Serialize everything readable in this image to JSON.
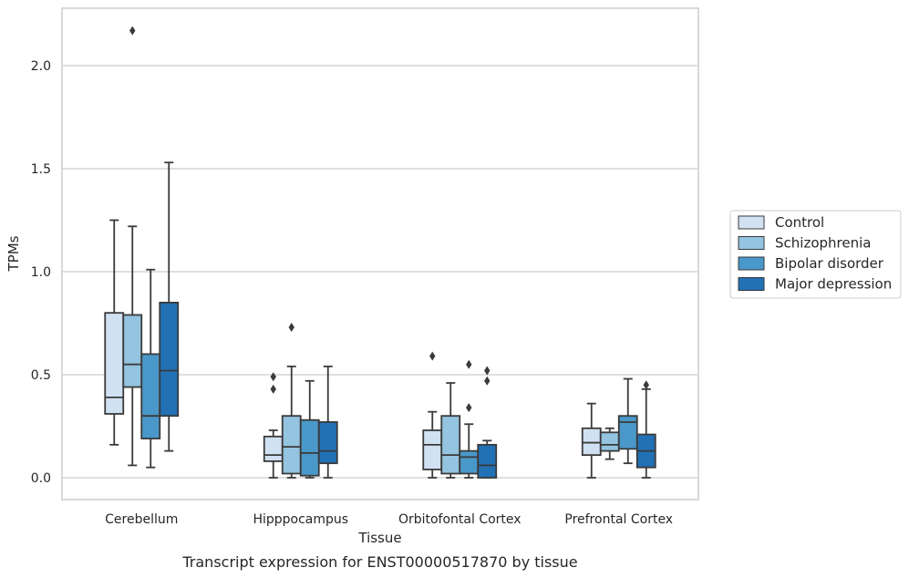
{
  "chart_data": {
    "type": "box",
    "title": "",
    "caption": "Transcript expression for ENST00000517870 by tissue",
    "xlabel": "Tissue",
    "ylabel": "TPMs",
    "ylim": [
      -0.1,
      2.3
    ],
    "yticks": [
      0.0,
      0.5,
      1.0,
      1.5,
      2.0
    ],
    "ytick_labels": [
      "0.0",
      "0.5",
      "1.0",
      "1.5",
      "2.0"
    ],
    "grid": "horizontal",
    "legend_position": "right",
    "categories": [
      "Cerebellum",
      "Hipppocampus",
      "Orbitofontal Cortex",
      "Prefrontal Cortex"
    ],
    "series": [
      {
        "name": "Control",
        "color": "#d0e1f2",
        "boxes": [
          {
            "whisker_low": 0.16,
            "q1": 0.31,
            "median": 0.39,
            "q3": 0.8,
            "whisker_high": 1.25,
            "outliers": []
          },
          {
            "whisker_low": 0.0,
            "q1": 0.08,
            "median": 0.11,
            "q3": 0.2,
            "whisker_high": 0.23,
            "outliers": [
              0.43,
              0.49
            ]
          },
          {
            "whisker_low": 0.0,
            "q1": 0.04,
            "median": 0.16,
            "q3": 0.23,
            "whisker_high": 0.32,
            "outliers": [
              0.59
            ]
          },
          {
            "whisker_low": 0.0,
            "q1": 0.11,
            "median": 0.17,
            "q3": 0.24,
            "whisker_high": 0.36,
            "outliers": []
          }
        ]
      },
      {
        "name": "Schizophrenia",
        "color": "#94c4df",
        "boxes": [
          {
            "whisker_low": 0.06,
            "q1": 0.44,
            "median": 0.55,
            "q3": 0.79,
            "whisker_high": 1.22,
            "outliers": [
              2.17
            ]
          },
          {
            "whisker_low": 0.0,
            "q1": 0.02,
            "median": 0.15,
            "q3": 0.3,
            "whisker_high": 0.54,
            "outliers": [
              0.73
            ]
          },
          {
            "whisker_low": 0.0,
            "q1": 0.02,
            "median": 0.11,
            "q3": 0.3,
            "whisker_high": 0.46,
            "outliers": []
          },
          {
            "whisker_low": 0.09,
            "q1": 0.13,
            "median": 0.16,
            "q3": 0.22,
            "whisker_high": 0.24,
            "outliers": []
          }
        ]
      },
      {
        "name": "Bipolar disorder",
        "color": "#4a98c9",
        "boxes": [
          {
            "whisker_low": 0.05,
            "q1": 0.19,
            "median": 0.3,
            "q3": 0.6,
            "whisker_high": 1.01,
            "outliers": []
          },
          {
            "whisker_low": 0.0,
            "q1": 0.01,
            "median": 0.12,
            "q3": 0.28,
            "whisker_high": 0.47,
            "outliers": []
          },
          {
            "whisker_low": 0.0,
            "q1": 0.02,
            "median": 0.1,
            "q3": 0.13,
            "whisker_high": 0.26,
            "outliers": [
              0.34,
              0.55
            ]
          },
          {
            "whisker_low": 0.07,
            "q1": 0.14,
            "median": 0.27,
            "q3": 0.3,
            "whisker_high": 0.48,
            "outliers": []
          }
        ]
      },
      {
        "name": "Major depression",
        "color": "#2271b5",
        "boxes": [
          {
            "whisker_low": 0.13,
            "q1": 0.3,
            "median": 0.52,
            "q3": 0.85,
            "whisker_high": 1.53,
            "outliers": []
          },
          {
            "whisker_low": 0.0,
            "q1": 0.07,
            "median": 0.13,
            "q3": 0.27,
            "whisker_high": 0.54,
            "outliers": []
          },
          {
            "whisker_low": 0.0,
            "q1": 0.0,
            "median": 0.06,
            "q3": 0.16,
            "whisker_high": 0.18,
            "outliers": [
              0.47,
              0.52
            ]
          },
          {
            "whisker_low": 0.0,
            "q1": 0.05,
            "median": 0.13,
            "q3": 0.21,
            "whisker_high": 0.43,
            "outliers": [
              0.45
            ]
          }
        ]
      }
    ],
    "colors": {
      "edge": "#3a3a3a",
      "grid": "#cccccc",
      "frame": "#cccccc"
    }
  }
}
